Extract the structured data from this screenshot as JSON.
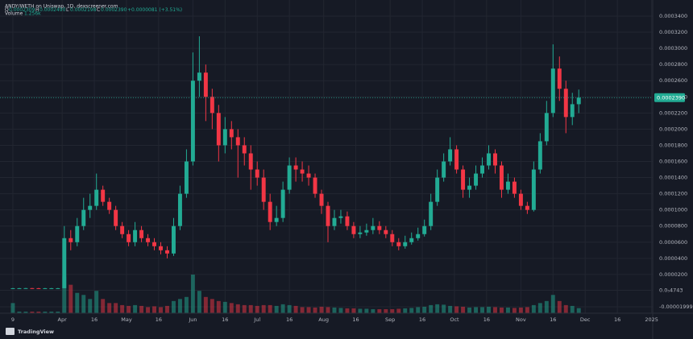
{
  "header": {
    "symbol": "ANDY/WETH on Uniswap, 1D, dexscreener.com",
    "ohlc": [
      {
        "key": "O",
        "value": "0.0002309"
      },
      {
        "key": "H",
        "value": "0.0002490"
      },
      {
        "key": "L",
        "value": "0.0002198"
      },
      {
        "key": "C",
        "value": "0.0002390"
      }
    ],
    "change": "+0.0000081 (+3.51%)",
    "volume_label": "Volume",
    "volume_value": "1.256k"
  },
  "branding": "TradingView",
  "chart_data": {
    "type": "candlestick",
    "up_color": "#22ab94",
    "down_color": "#f23645",
    "grid": true,
    "last_price_label": "0.0002390",
    "open": [
      3e-06,
      3e-06,
      3e-06,
      3.1e-06,
      3e-06,
      2.9e-06,
      3e-06,
      3e-06,
      3e-06,
      6.5e-05,
      6e-05,
      8e-05,
      0.0001,
      0.000105,
      0.000125,
      0.00011,
      0.0001,
      8e-05,
      7e-05,
      6e-05,
      7.5e-05,
      6.5e-05,
      6e-05,
      5.5e-05,
      5e-05,
      4.6e-05,
      8e-05,
      0.00012,
      0.00016,
      0.00026,
      0.00027,
      0.00024,
      0.00022,
      0.00018,
      0.0002,
      0.00019,
      0.00018,
      0.00017,
      0.00015,
      0.00014,
      0.00011,
      8.5e-05,
      9e-05,
      0.000125,
      0.000155,
      0.00015,
      0.000145,
      0.00014,
      0.00012,
      0.000105,
      8e-05,
      9e-05,
      9.2e-05,
      8e-05,
      7e-05,
      7.2e-05,
      7.5e-05,
      8e-05,
      7.5e-05,
      7e-05,
      6e-05,
      5.5e-05,
      6e-05,
      6.5e-05,
      7e-05,
      8e-05,
      0.00011,
      0.00014,
      0.00016,
      0.000175,
      0.00015,
      0.000125,
      0.00013,
      0.000145,
      0.000155,
      0.00017,
      0.000155,
      0.000125,
      0.000135,
      0.00012,
      0.000105,
      0.0001,
      0.00015,
      0.000185,
      0.00022,
      0.000275,
      0.00025,
      0.000215,
      0.0002309
    ],
    "high": [
      3.3e-06,
      3.3e-06,
      3.3e-06,
      3.3e-06,
      3.3e-06,
      3.3e-06,
      3.3e-06,
      3.3e-06,
      8e-05,
      7.5e-05,
      9e-05,
      0.000115,
      0.00012,
      0.000145,
      0.00013,
      0.000115,
      0.000105,
      8.5e-05,
      7.5e-05,
      8.5e-05,
      8e-05,
      7e-05,
      6.5e-05,
      6e-05,
      5.5e-05,
      9e-05,
      0.00013,
      0.000175,
      0.000295,
      0.000315,
      0.00028,
      0.00025,
      0.00023,
      0.000215,
      0.00021,
      0.0002,
      0.00019,
      0.00018,
      0.00016,
      0.00015,
      0.00012,
      0.000105,
      0.000135,
      0.000165,
      0.000165,
      0.00016,
      0.000155,
      0.000145,
      0.000125,
      0.00011,
      0.0001,
      0.0001,
      9.8e-05,
      8.5e-05,
      8e-05,
      8.3e-05,
      9e-05,
      8.6e-05,
      8e-05,
      7.5e-05,
      6.5e-05,
      6.8e-05,
      7.2e-05,
      7.8e-05,
      8.8e-05,
      0.00012,
      0.00015,
      0.00017,
      0.00019,
      0.00018,
      0.000155,
      0.00014,
      0.000155,
      0.000165,
      0.00018,
      0.000175,
      0.00016,
      0.000145,
      0.00014,
      0.000125,
      0.00011,
      0.00016,
      0.000195,
      0.000235,
      0.000305,
      0.00029,
      0.00026,
      0.000245,
      0.000249
    ],
    "low": [
      2.7e-06,
      2.7e-06,
      2.7e-06,
      2.7e-06,
      2.7e-06,
      2.7e-06,
      2.7e-06,
      2.7e-06,
      3e-06,
      5e-05,
      5.5e-05,
      7.5e-05,
      9e-05,
      0.0001,
      0.000105,
      9.5e-05,
      7.5e-05,
      6.5e-05,
      5.5e-05,
      5.5e-05,
      6e-05,
      5.5e-05,
      5e-05,
      4.5e-05,
      4e-05,
      4.3e-05,
      7.5e-05,
      0.000115,
      0.000155,
      0.00024,
      0.00021,
      0.0002,
      0.00016,
      0.00017,
      0.000175,
      0.00014,
      0.000155,
      0.000125,
      0.00013,
      0.0001,
      7.5e-05,
      8e-05,
      8.5e-05,
      0.00012,
      0.000135,
      0.000135,
      0.00013,
      0.000115,
      9.5e-05,
      6e-05,
      7.5e-05,
      8.3e-05,
      7.5e-05,
      6.5e-05,
      6.5e-05,
      6.8e-05,
      7e-05,
      7e-05,
      6.5e-05,
      5.5e-05,
      5e-05,
      5.2e-05,
      5.7e-05,
      6.2e-05,
      6.7e-05,
      7.5e-05,
      0.000105,
      0.000135,
      0.000155,
      0.000145,
      0.000115,
      0.000115,
      0.000125,
      0.00014,
      0.00015,
      0.000145,
      0.000115,
      0.00012,
      0.000115,
      0.0001,
      9.5e-05,
      9.8e-05,
      0.000145,
      0.00018,
      0.000215,
      0.000235,
      0.000195,
      0.000205,
      0.0002198
    ],
    "close": [
      3e-06,
      3e-06,
      3.1e-06,
      3e-06,
      2.9e-06,
      3e-06,
      3e-06,
      3e-06,
      6.5e-05,
      6e-05,
      8e-05,
      0.0001,
      0.000105,
      0.000125,
      0.00011,
      0.0001,
      8e-05,
      7e-05,
      6e-05,
      7.5e-05,
      6.5e-05,
      6e-05,
      5.5e-05,
      5e-05,
      4.6e-05,
      8e-05,
      0.00012,
      0.00016,
      0.00026,
      0.00027,
      0.00024,
      0.00022,
      0.00018,
      0.0002,
      0.00019,
      0.00018,
      0.00017,
      0.00015,
      0.00014,
      0.00011,
      8.5e-05,
      9e-05,
      0.000125,
      0.000155,
      0.00015,
      0.000145,
      0.00014,
      0.00012,
      0.000105,
      8e-05,
      9e-05,
      9.2e-05,
      8e-05,
      7e-05,
      7.2e-05,
      7.5e-05,
      8e-05,
      7.5e-05,
      7e-05,
      6e-05,
      5.5e-05,
      6e-05,
      6.5e-05,
      7e-05,
      8e-05,
      0.00011,
      0.00014,
      0.00016,
      0.000175,
      0.00015,
      0.000125,
      0.00013,
      0.000145,
      0.000155,
      0.00017,
      0.000155,
      0.000125,
      0.000135,
      0.00012,
      0.000105,
      0.0001,
      0.00015,
      0.000185,
      0.00022,
      0.000275,
      0.00025,
      0.000215,
      0.0002309,
      0.000239
    ],
    "volume": [
      2500,
      400,
      400,
      400,
      400,
      400,
      400,
      400,
      9000,
      7000,
      5000,
      4500,
      3500,
      5500,
      3500,
      2500,
      2500,
      2000,
      1800,
      2000,
      1800,
      1500,
      1700,
      1500,
      1800,
      3000,
      3500,
      4000,
      9500,
      5500,
      4000,
      3500,
      3000,
      2800,
      2500,
      2200,
      2000,
      2000,
      1800,
      2000,
      2000,
      1800,
      2200,
      2000,
      1800,
      1500,
      1500,
      1400,
      1600,
      1500,
      1400,
      1300,
      1200,
      1200,
      1100,
      1100,
      1000,
      1000,
      1000,
      1000,
      1100,
      1200,
      1300,
      1500,
      1600,
      2000,
      2200,
      2100,
      1800,
      1700,
      1600,
      1400,
      1500,
      1500,
      1600,
      1500,
      1400,
      1400,
      1300,
      1400,
      1500,
      2000,
      2500,
      3000,
      4500,
      3000,
      2000,
      1800,
      1256
    ],
    "xlim": [
      -2,
      99.5
    ],
    "xticks": [
      {
        "value": 0,
        "label": "9"
      },
      {
        "value": 7.67,
        "label": "Apr"
      },
      {
        "value": 12.67,
        "label": "16"
      },
      {
        "value": 17.67,
        "label": "May"
      },
      {
        "value": 22.67,
        "label": "16"
      },
      {
        "value": 28,
        "label": "Jun"
      },
      {
        "value": 33,
        "label": "16"
      },
      {
        "value": 38,
        "label": "Jul"
      },
      {
        "value": 43,
        "label": "16"
      },
      {
        "value": 48.33,
        "label": "Aug"
      },
      {
        "value": 53.33,
        "label": "16"
      },
      {
        "value": 58.67,
        "label": "Sep"
      },
      {
        "value": 63.67,
        "label": "16"
      },
      {
        "value": 68.67,
        "label": "Oct"
      },
      {
        "value": 73.67,
        "label": "16"
      },
      {
        "value": 79,
        "label": "Nov"
      },
      {
        "value": 84,
        "label": "16"
      },
      {
        "value": 89,
        "label": "Dec"
      },
      {
        "value": 94,
        "label": "16"
      },
      {
        "value": 99.33,
        "label": "2025"
      }
    ],
    "ylim": [
      -2e-05,
      0.00034
    ],
    "yticks": [
      -1.999e-05,
      {
        "value": 4.743e-07,
        "label": "0.0₅4743"
      },
      {
        "value": 2e-05,
        "label": "0.0000200"
      },
      {
        "value": 4e-05,
        "label": "0.0000400"
      },
      {
        "value": 6e-05,
        "label": "0.0000600"
      },
      {
        "value": 8e-05,
        "label": "0.0000800"
      },
      {
        "value": 0.0001,
        "label": "0.0001000"
      },
      {
        "value": 0.00012,
        "label": "0.0001200"
      },
      {
        "value": 0.00014,
        "label": "0.0001400"
      },
      {
        "value": 0.00016,
        "label": "0.0001600"
      },
      {
        "value": 0.00018,
        "label": "0.0001800"
      },
      {
        "value": 0.0002,
        "label": "0.0002000"
      },
      {
        "value": 0.00022,
        "label": "0.0002200"
      },
      {
        "value": 0.00024,
        "label": "0.0002400"
      },
      {
        "value": 0.00026,
        "label": "0.0002600"
      },
      {
        "value": 0.00028,
        "label": "0.0002800"
      },
      {
        "value": 0.0003,
        "label": "0.0003000"
      },
      {
        "value": 0.00032,
        "label": "0.0003200"
      },
      {
        "value": 0.00034,
        "label": "0.0003400"
      }
    ]
  }
}
